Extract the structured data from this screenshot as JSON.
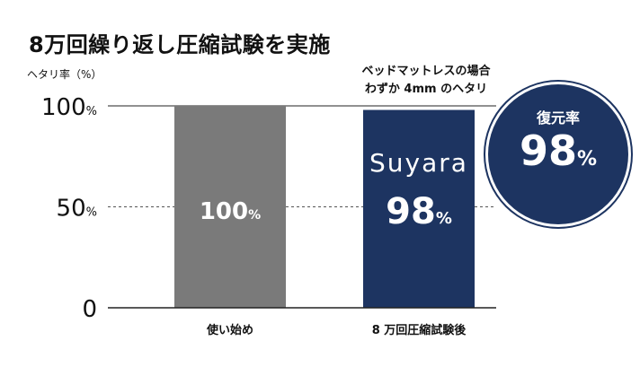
{
  "title": "8万回繰り返し圧縮試験を実施",
  "annotation": [
    "ベッドマットレスの場合",
    "わずか 4mm のヘタリ"
  ],
  "badge": {
    "label": "復元率",
    "value": "98",
    "unit": "%"
  },
  "chart_data": {
    "type": "bar",
    "ylabel": "ヘタリ率（%）",
    "ylim": [
      0,
      100
    ],
    "yticks": [
      {
        "value": 100,
        "label": "100",
        "unit": "%"
      },
      {
        "value": 50,
        "label": "50",
        "unit": "%"
      },
      {
        "value": 0,
        "label": "0",
        "unit": ""
      }
    ],
    "gridlines": [
      {
        "value": 100,
        "style": "solid"
      },
      {
        "value": 50,
        "style": "dashed"
      }
    ],
    "categories": [
      "使い始め",
      "8 万回圧縮試験後"
    ],
    "values": [
      100,
      98
    ],
    "bar_labels": [
      {
        "brand": "",
        "value": "100",
        "unit": "%"
      },
      {
        "brand": "Suyara",
        "value": "98",
        "unit": "%"
      }
    ],
    "colors": [
      "#7a7a7a",
      "#1d3461"
    ]
  }
}
